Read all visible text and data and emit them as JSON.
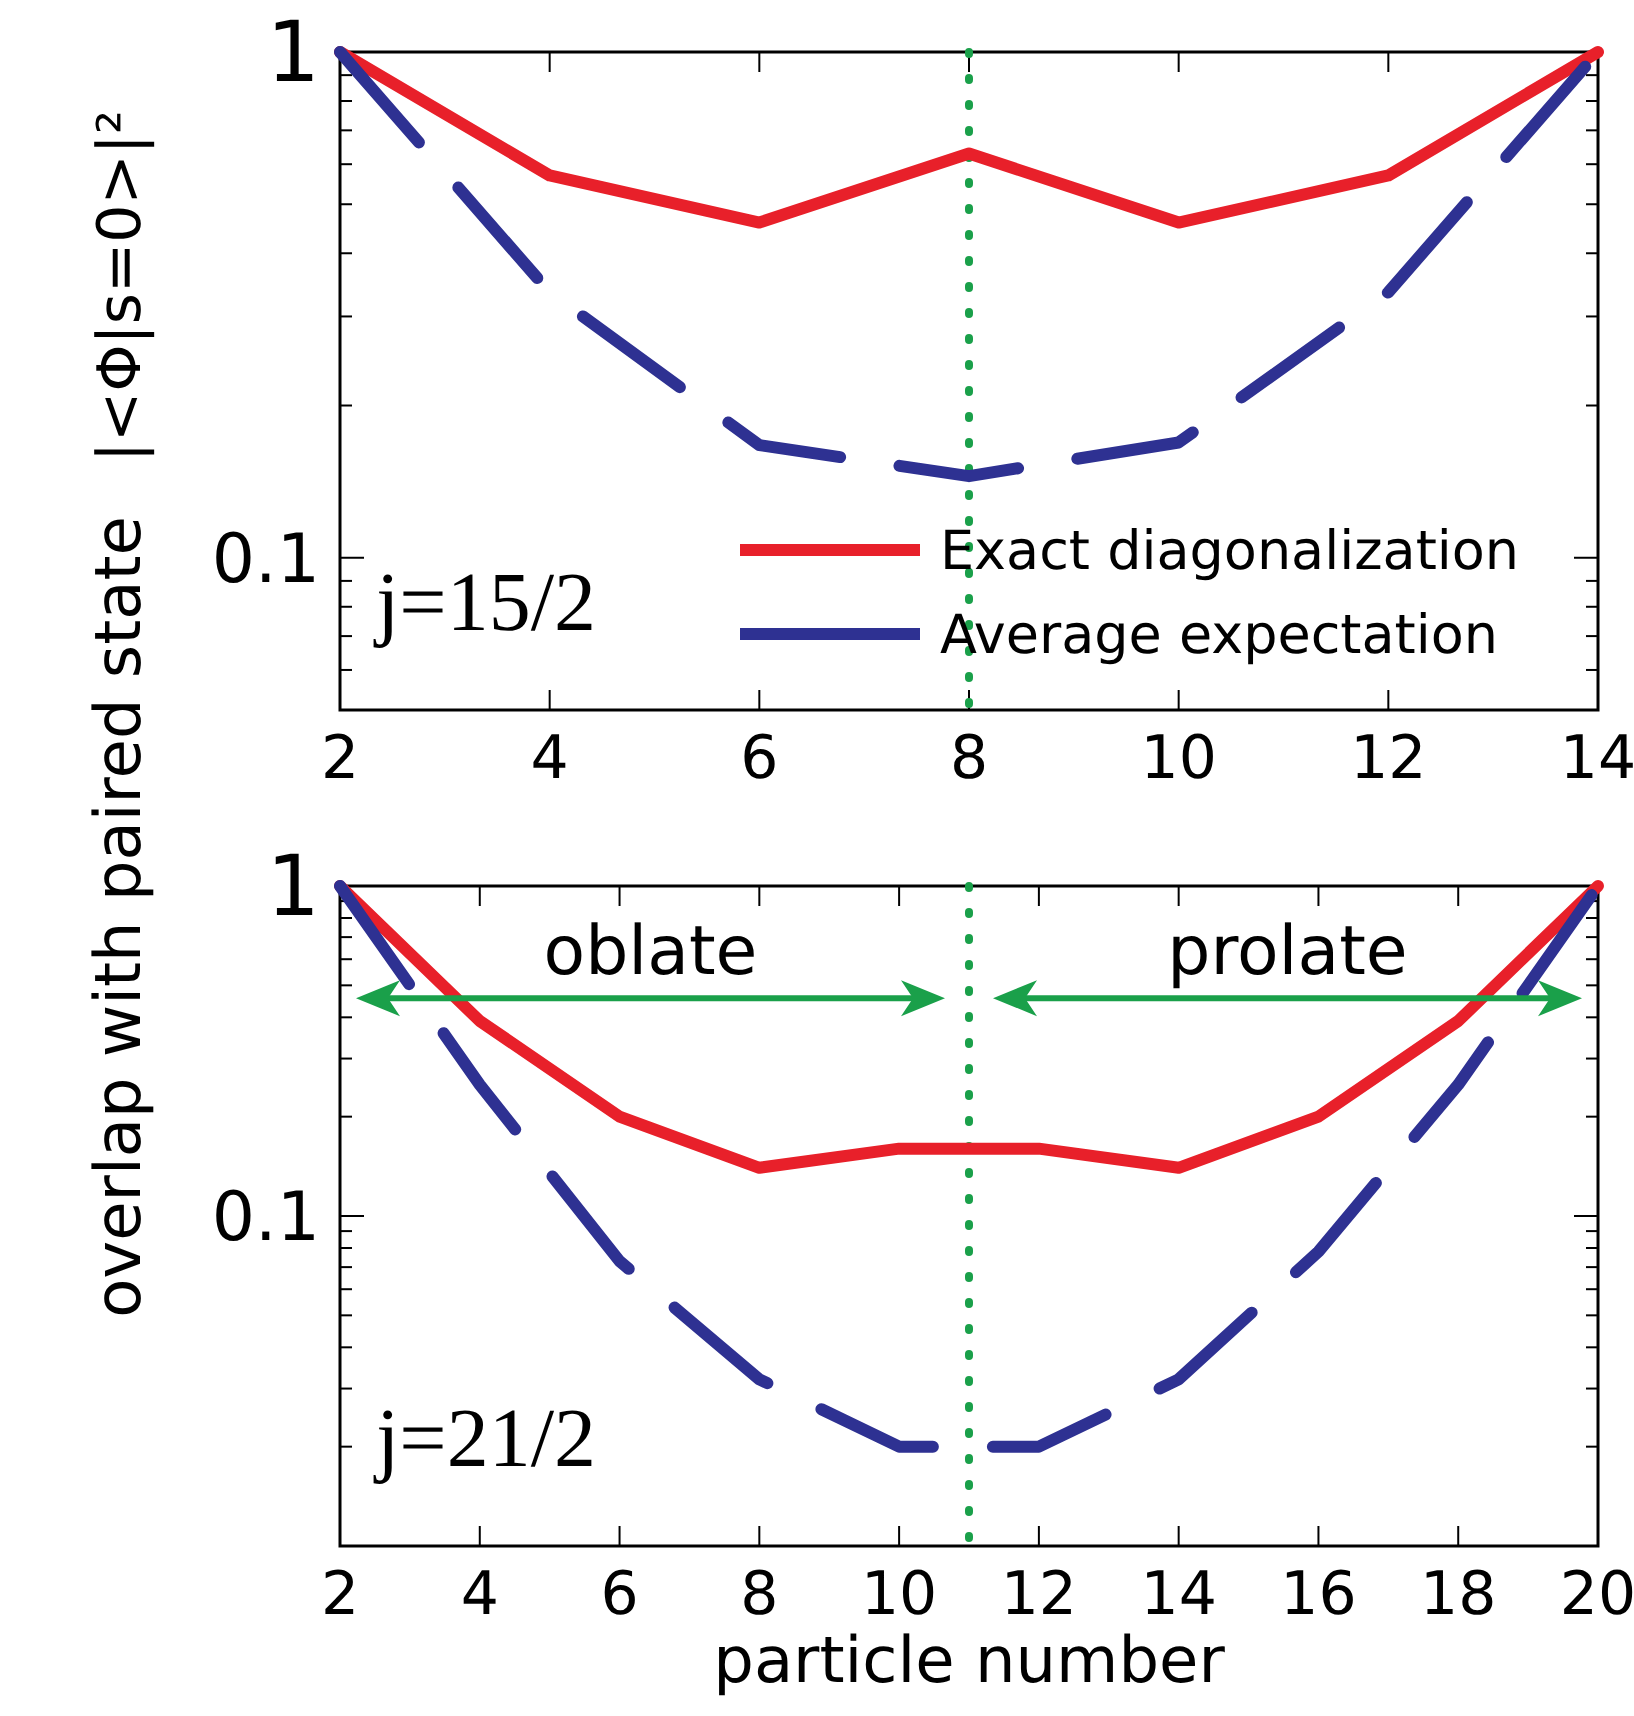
{
  "chart_data": [
    {
      "type": "line",
      "ylabel": "|<Φ|s=0>|²",
      "x": [
        2,
        4,
        6,
        8,
        10,
        12,
        14
      ],
      "xlim": [
        2,
        14
      ],
      "xticks": [
        2,
        4,
        6,
        8,
        10,
        12,
        14
      ],
      "ylim": [
        0.05,
        1
      ],
      "log": "y",
      "yticks": [
        {
          "value": 0.05,
          "label": null
        },
        {
          "value": 0.06,
          "label": null
        },
        {
          "value": 0.07,
          "label": null
        },
        {
          "value": 0.08,
          "label": null
        },
        {
          "value": 0.09,
          "label": null
        },
        {
          "value": 0.1,
          "label": "0.1"
        },
        {
          "value": 0.2,
          "label": null
        },
        {
          "value": 0.3,
          "label": null
        },
        {
          "value": 0.4,
          "label": null
        },
        {
          "value": 0.5,
          "label": null
        },
        {
          "value": 0.6,
          "label": null
        },
        {
          "value": 0.7,
          "label": null
        },
        {
          "value": 0.8,
          "label": null
        },
        {
          "value": 0.9,
          "label": null
        },
        {
          "value": 1,
          "label": "1"
        }
      ],
      "legend": "bottom right",
      "grid": false,
      "series": [
        {
          "name": "Exact diagonalization",
          "color": "#e8202a",
          "line_style": "solid",
          "values": [
            1,
            0.57,
            0.46,
            0.63,
            0.46,
            0.57,
            1
          ]
        },
        {
          "name": "Average expectation",
          "color": "#2e3192",
          "line_style": "dashed",
          "values": [
            1,
            0.335,
            0.167,
            0.145,
            0.169,
            0.335,
            1
          ]
        }
      ],
      "ref_lines": [
        {
          "axis": "x",
          "value": 8,
          "color": "#1aa04a",
          "line_style": "dotted"
        }
      ],
      "annotations": [
        "j=15/2"
      ]
    },
    {
      "type": "line",
      "ylabel": "overlap with paired state",
      "xlabel": "particle number",
      "x": [
        2,
        4,
        6,
        8,
        10,
        12,
        14,
        16,
        18,
        20
      ],
      "xlim": [
        2,
        20
      ],
      "xticks": [
        2,
        4,
        6,
        8,
        10,
        12,
        14,
        16,
        18,
        20
      ],
      "ylim": [
        0.01,
        1
      ],
      "log": "y",
      "yticks": [
        {
          "value": 0.01,
          "label": null
        },
        {
          "value": 0.02,
          "label": null
        },
        {
          "value": 0.03,
          "label": null
        },
        {
          "value": 0.04,
          "label": null
        },
        {
          "value": 0.05,
          "label": null
        },
        {
          "value": 0.06,
          "label": null
        },
        {
          "value": 0.07,
          "label": null
        },
        {
          "value": 0.08,
          "label": null
        },
        {
          "value": 0.09,
          "label": null
        },
        {
          "value": 0.1,
          "label": "0.1"
        },
        {
          "value": 0.2,
          "label": null
        },
        {
          "value": 0.3,
          "label": null
        },
        {
          "value": 0.4,
          "label": null
        },
        {
          "value": 0.5,
          "label": null
        },
        {
          "value": 0.6,
          "label": null
        },
        {
          "value": 0.7,
          "label": null
        },
        {
          "value": 0.8,
          "label": null
        },
        {
          "value": 0.9,
          "label": null
        },
        {
          "value": 1,
          "label": "1"
        }
      ],
      "grid": false,
      "series": [
        {
          "color": "#e8202a",
          "line_style": "solid",
          "values": [
            1,
            0.39,
            0.2,
            0.14,
            0.16,
            0.16,
            0.14,
            0.2,
            0.39,
            1
          ]
        },
        {
          "color": "#2e3192",
          "line_style": "dashed",
          "values": [
            1,
            0.25,
            0.073,
            0.032,
            0.02,
            0.02,
            0.032,
            0.078,
            0.25,
            1
          ]
        }
      ],
      "ref_lines": [
        {
          "axis": "x",
          "value": 11,
          "color": "#1aa04a",
          "line_style": "dotted"
        }
      ],
      "annotations": [
        "j=21/2",
        "oblate",
        "prolate"
      ]
    }
  ]
}
